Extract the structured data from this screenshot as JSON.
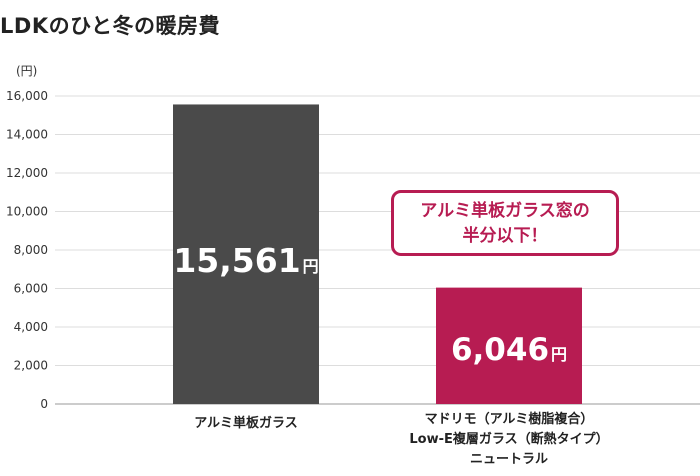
{
  "chart_data": {
    "type": "bar",
    "title": "LDKのひと冬の暖房費",
    "unit": "(円)",
    "ylim": [
      0,
      16000
    ],
    "yticks": [
      "0",
      "2,000",
      "4,000",
      "6,000",
      "8,000",
      "10,000",
      "12,000",
      "14,000",
      "16,000"
    ],
    "grid": true,
    "categories": [
      [
        "アルミ単板ガラス"
      ],
      [
        "マドリモ（アルミ樹脂複合）",
        "Low-E複層ガラス（断熱タイプ）",
        "ニュートラル"
      ]
    ],
    "values": [
      15561,
      6046
    ],
    "value_labels": [
      {
        "number": "15,561",
        "suffix": "円"
      },
      {
        "number": "6,046",
        "suffix": "円"
      }
    ],
    "bar_colors": [
      "#4a4a4a",
      "#b71c52"
    ],
    "annotation": {
      "lines": [
        "アルミ単板ガラス窓の",
        "半分以下！"
      ],
      "color": "#b71c52"
    }
  }
}
